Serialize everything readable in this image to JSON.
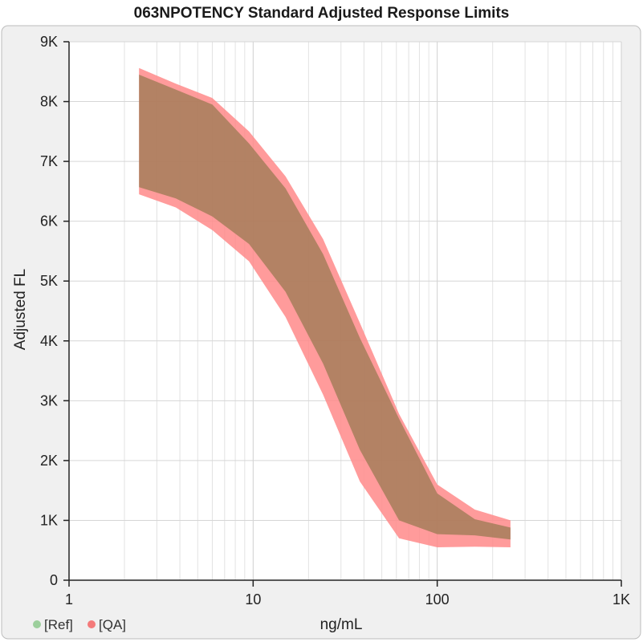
{
  "chart_data": {
    "type": "area",
    "title": "063NPOTENCY Standard Adjusted Response Limits",
    "xlabel": "ng/mL",
    "ylabel": "Adjusted FL",
    "x_scale": "log",
    "xlim": [
      1,
      1000
    ],
    "ylim": [
      0,
      9000
    ],
    "x_ticks": [
      1,
      10,
      100,
      1000
    ],
    "x_tick_labels": [
      "1",
      "10",
      "100",
      "1K"
    ],
    "y_ticks": [
      0,
      1000,
      2000,
      3000,
      4000,
      5000,
      6000,
      7000,
      8000,
      9000
    ],
    "y_tick_labels": [
      "0",
      "1K",
      "2K",
      "3K",
      "4K",
      "5K",
      "6K",
      "7K",
      "8K",
      "9K"
    ],
    "grid": true,
    "legend": "bottom-left",
    "legend_entries": [
      {
        "label": "[Ref]",
        "color": "#9ccf9c"
      },
      {
        "label": "[QA]",
        "color": "#f47a7a"
      }
    ],
    "series": [
      {
        "name": "[QA]",
        "color": "#ff8a8a",
        "x": [
          2.4,
          3.8,
          6,
          9.5,
          15,
          24,
          38,
          62,
          100,
          160,
          250
        ],
        "upper": [
          8560,
          8300,
          8060,
          7500,
          6750,
          5700,
          4300,
          2780,
          1600,
          1180,
          1000
        ],
        "lower": [
          6450,
          6230,
          5850,
          5330,
          4400,
          3100,
          1650,
          700,
          550,
          560,
          550
        ]
      },
      {
        "name": "[Ref]",
        "color": "#9a7a52",
        "x": [
          2.4,
          3.8,
          6,
          9.5,
          15,
          24,
          38,
          62,
          100,
          160,
          250
        ],
        "upper": [
          8450,
          8200,
          7950,
          7300,
          6550,
          5450,
          4050,
          2700,
          1450,
          1020,
          880
        ],
        "lower": [
          6570,
          6380,
          6080,
          5620,
          4820,
          3620,
          2180,
          1000,
          770,
          750,
          680
        ]
      }
    ]
  }
}
